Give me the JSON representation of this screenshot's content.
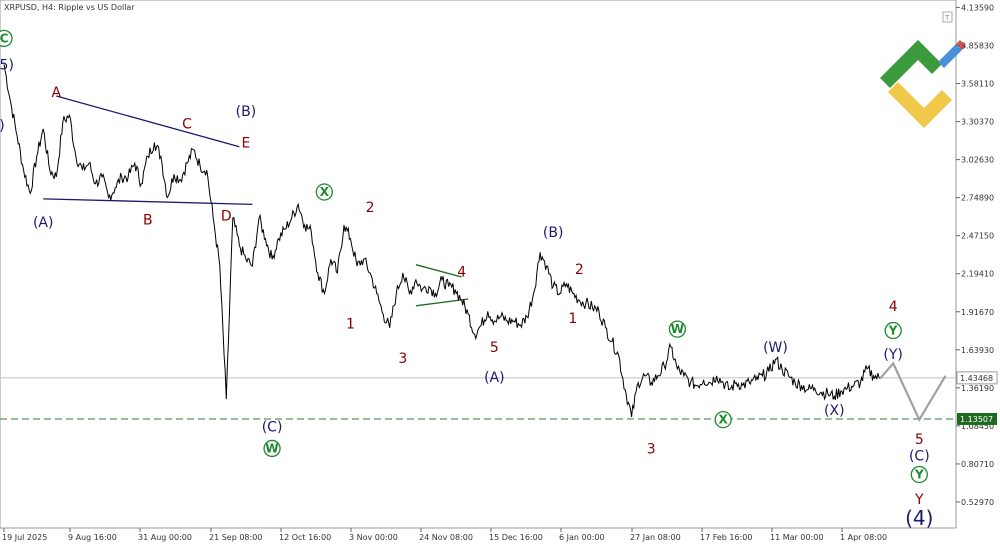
{
  "chart_data": {
    "type": "line",
    "title": "XRPUSD, H4:  Ripple vs US Dollar",
    "symbol": "XRPUSD",
    "timeframe": "H4",
    "description": "Ripple vs US Dollar",
    "x_ticks": [
      "19 Jul 2025",
      "9 Aug 16:00",
      "31 Aug 00:00",
      "21 Sep 08:00",
      "12 Oct 16:00",
      "3 Nov 00:00",
      "24 Nov 08:00",
      "15 Dec 16:00",
      "6 Jan 00:00",
      "27 Jan 08:00",
      "17 Feb 16:00",
      "11 Mar 00:00",
      "1 Apr 08:00"
    ],
    "y_ticks": [
      4.1359,
      3.8583,
      3.5811,
      3.3037,
      3.0263,
      2.7489,
      2.4715,
      2.1941,
      1.9167,
      1.6393,
      1.3619,
      1.0845,
      0.8071,
      0.5297
    ],
    "ylim": [
      0.34,
      4.19
    ],
    "current_price": 1.43468,
    "current_price_label": "1.43468",
    "support_level": 1.13507,
    "support_label": "1.13507",
    "price_path": [
      [
        0,
        3.72
      ],
      [
        1,
        3.45
      ],
      [
        2,
        3.2
      ],
      [
        3,
        2.95
      ],
      [
        4,
        2.78
      ],
      [
        5,
        3.05
      ],
      [
        6,
        3.25
      ],
      [
        7,
        2.95
      ],
      [
        8,
        2.9
      ],
      [
        9,
        3.3
      ],
      [
        10,
        3.35
      ],
      [
        11,
        3.05
      ],
      [
        12,
        2.95
      ],
      [
        13,
        3.0
      ],
      [
        14,
        2.85
      ],
      [
        15,
        2.9
      ],
      [
        16,
        2.75
      ],
      [
        17,
        2.82
      ],
      [
        18,
        2.9
      ],
      [
        19,
        2.9
      ],
      [
        20,
        3.0
      ],
      [
        21,
        2.85
      ],
      [
        22,
        3.05
      ],
      [
        23,
        3.15
      ],
      [
        24,
        3.05
      ],
      [
        25,
        2.75
      ],
      [
        26,
        2.92
      ],
      [
        27,
        2.88
      ],
      [
        28,
        3.0
      ],
      [
        29,
        3.1
      ],
      [
        30,
        2.98
      ],
      [
        31,
        2.95
      ],
      [
        32,
        2.6
      ],
      [
        33,
        2.25
      ],
      [
        34,
        1.28
      ],
      [
        35,
        2.6
      ],
      [
        36,
        2.4
      ],
      [
        37,
        2.3
      ],
      [
        38,
        2.25
      ],
      [
        39,
        2.6
      ],
      [
        40,
        2.45
      ],
      [
        41,
        2.3
      ],
      [
        42,
        2.45
      ],
      [
        43,
        2.52
      ],
      [
        44,
        2.6
      ],
      [
        45,
        2.7
      ],
      [
        46,
        2.55
      ],
      [
        47,
        2.5
      ],
      [
        48,
        2.2
      ],
      [
        49,
        2.05
      ],
      [
        50,
        2.3
      ],
      [
        51,
        2.2
      ],
      [
        52,
        2.55
      ],
      [
        53,
        2.45
      ],
      [
        54,
        2.25
      ],
      [
        55,
        2.3
      ],
      [
        56,
        2.2
      ],
      [
        57,
        2.05
      ],
      [
        58,
        1.9
      ],
      [
        59,
        1.8
      ],
      [
        60,
        2.05
      ],
      [
        61,
        2.2
      ],
      [
        62,
        2.05
      ],
      [
        63,
        2.15
      ],
      [
        64,
        2.08
      ],
      [
        65,
        2.1
      ],
      [
        66,
        2.05
      ],
      [
        67,
        2.15
      ],
      [
        68,
        2.1
      ],
      [
        69,
        2.08
      ],
      [
        70,
        2.0
      ],
      [
        71,
        1.9
      ],
      [
        72,
        1.75
      ],
      [
        73,
        1.82
      ],
      [
        74,
        1.92
      ],
      [
        75,
        1.85
      ],
      [
        76,
        1.88
      ],
      [
        77,
        1.85
      ],
      [
        78,
        1.85
      ],
      [
        79,
        1.82
      ],
      [
        80,
        1.88
      ],
      [
        81,
        2.05
      ],
      [
        82,
        2.35
      ],
      [
        83,
        2.25
      ],
      [
        84,
        2.1
      ],
      [
        85,
        2.05
      ],
      [
        86,
        2.12
      ],
      [
        87,
        2.05
      ],
      [
        88,
        2.0
      ],
      [
        89,
        1.98
      ],
      [
        90,
        1.95
      ],
      [
        91,
        1.92
      ],
      [
        92,
        1.8
      ],
      [
        93,
        1.7
      ],
      [
        94,
        1.6
      ],
      [
        95,
        1.35
      ],
      [
        96,
        1.15
      ],
      [
        97,
        1.4
      ],
      [
        98,
        1.45
      ],
      [
        99,
        1.4
      ],
      [
        100,
        1.45
      ],
      [
        101,
        1.52
      ],
      [
        102,
        1.66
      ],
      [
        103,
        1.5
      ],
      [
        104,
        1.45
      ],
      [
        105,
        1.4
      ],
      [
        106,
        1.38
      ],
      [
        107,
        1.42
      ],
      [
        108,
        1.4
      ],
      [
        109,
        1.45
      ],
      [
        110,
        1.4
      ],
      [
        111,
        1.35
      ],
      [
        112,
        1.4
      ],
      [
        113,
        1.38
      ],
      [
        114,
        1.4
      ],
      [
        115,
        1.42
      ],
      [
        116,
        1.45
      ],
      [
        117,
        1.48
      ],
      [
        118,
        1.57
      ],
      [
        119,
        1.5
      ],
      [
        120,
        1.45
      ],
      [
        121,
        1.4
      ],
      [
        122,
        1.38
      ],
      [
        123,
        1.35
      ],
      [
        124,
        1.36
      ],
      [
        125,
        1.33
      ],
      [
        126,
        1.32
      ],
      [
        127,
        1.3
      ],
      [
        128,
        1.34
      ],
      [
        129,
        1.36
      ],
      [
        130,
        1.38
      ],
      [
        131,
        1.4
      ],
      [
        132,
        1.5
      ],
      [
        133,
        1.45
      ],
      [
        134,
        1.43
      ]
    ],
    "projection_path": [
      [
        134,
        1.43
      ],
      [
        136,
        1.54
      ],
      [
        140,
        1.13
      ],
      [
        144,
        1.45
      ]
    ],
    "wave_labels": [
      {
        "text": "C",
        "circled": true,
        "color": "#1e8a2e",
        "x": 0,
        "y": 3.91
      },
      {
        "text": "(5)",
        "circled": false,
        "color": "#1a1a6e",
        "x": 0,
        "y": 3.72
      },
      {
        "text": "4)",
        "circled": false,
        "color": "#1a1a6e",
        "x": -1,
        "y": 3.28
      },
      {
        "text": "A",
        "circled": false,
        "color": "#8b0000",
        "x": 8,
        "y": 3.52
      },
      {
        "text": "(A)",
        "circled": false,
        "color": "#1a1a6e",
        "x": 6,
        "y": 2.57
      },
      {
        "text": "B",
        "circled": false,
        "color": "#8b0000",
        "x": 22,
        "y": 2.59
      },
      {
        "text": "C",
        "circled": false,
        "color": "#8b0000",
        "x": 28,
        "y": 3.29
      },
      {
        "text": "D",
        "circled": false,
        "color": "#8b0000",
        "x": 34,
        "y": 2.62
      },
      {
        "text": "(B)",
        "circled": false,
        "color": "#1a1a6e",
        "x": 37,
        "y": 3.38
      },
      {
        "text": "E",
        "circled": false,
        "color": "#8b0000",
        "x": 37,
        "y": 3.15
      },
      {
        "text": "(C)",
        "circled": false,
        "color": "#1a1a6e",
        "x": 41,
        "y": 1.08
      },
      {
        "text": "W",
        "circled": true,
        "color": "#1e8a2e",
        "x": 41,
        "y": 0.92
      },
      {
        "text": "X",
        "circled": true,
        "color": "#1e8a2e",
        "x": 49,
        "y": 2.79
      },
      {
        "text": "2",
        "circled": false,
        "color": "#8b0000",
        "x": 56,
        "y": 2.68
      },
      {
        "text": "1",
        "circled": false,
        "color": "#8b0000",
        "x": 53,
        "y": 1.83
      },
      {
        "text": "3",
        "circled": false,
        "color": "#8b0000",
        "x": 61,
        "y": 1.58
      },
      {
        "text": "4",
        "circled": false,
        "color": "#8b0000",
        "x": 70,
        "y": 2.21
      },
      {
        "text": "5",
        "circled": false,
        "color": "#8b0000",
        "x": 75,
        "y": 1.66
      },
      {
        "text": "(A)",
        "circled": false,
        "color": "#1a1a6e",
        "x": 75,
        "y": 1.44
      },
      {
        "text": "(B)",
        "circled": false,
        "color": "#1a1a6e",
        "x": 84,
        "y": 2.5
      },
      {
        "text": "2",
        "circled": false,
        "color": "#8b0000",
        "x": 88,
        "y": 2.23
      },
      {
        "text": "1",
        "circled": false,
        "color": "#8b0000",
        "x": 87,
        "y": 1.87
      },
      {
        "text": "3",
        "circled": false,
        "color": "#8b0000",
        "x": 99,
        "y": 0.92
      },
      {
        "text": "W",
        "circled": true,
        "color": "#1e8a2e",
        "x": 103,
        "y": 1.79
      },
      {
        "text": "X",
        "circled": true,
        "color": "#1e8a2e",
        "x": 110,
        "y": 1.13
      },
      {
        "text": "(W)",
        "circled": false,
        "color": "#1a1a6e",
        "x": 118,
        "y": 1.66
      },
      {
        "text": "(X)",
        "circled": false,
        "color": "#1a1a6e",
        "x": 127,
        "y": 1.2
      },
      {
        "text": "4",
        "circled": false,
        "color": "#8b0000",
        "x": 136,
        "y": 1.96
      },
      {
        "text": "Y",
        "circled": true,
        "color": "#1e8a2e",
        "x": 136,
        "y": 1.78
      },
      {
        "text": "(Y)",
        "circled": false,
        "color": "#1a1a6e",
        "x": 136,
        "y": 1.61
      },
      {
        "text": "5",
        "circled": false,
        "color": "#8b0000",
        "x": 140,
        "y": 0.99
      },
      {
        "text": "(C)",
        "circled": false,
        "color": "#1a1a6e",
        "x": 140,
        "y": 0.87
      },
      {
        "text": "Y",
        "circled": true,
        "color": "#1e8a2e",
        "x": 140,
        "y": 0.73
      },
      {
        "text": "Y",
        "circled": false,
        "color": "#8b0000",
        "x": 140,
        "y": 0.55
      },
      {
        "text": "(4)",
        "circled": false,
        "color": "#1a1a6e",
        "x": 140,
        "y": 0.4
      }
    ],
    "trendlines": [
      {
        "color": "#1a1a6e",
        "points": [
          [
            8,
            3.49
          ],
          [
            36,
            3.12
          ]
        ]
      },
      {
        "color": "#1a1a6e",
        "points": [
          [
            6,
            2.74
          ],
          [
            38,
            2.7
          ]
        ]
      },
      {
        "color": "#1e6b1e",
        "points": [
          [
            63,
            2.26
          ],
          [
            70,
            2.17
          ]
        ]
      },
      {
        "color": "#1e6b1e",
        "points": [
          [
            63,
            1.96
          ],
          [
            71,
            2.01
          ]
        ]
      }
    ],
    "colors": {
      "price_line": "#000000",
      "projection": "#a0a0a0",
      "current_price_line": "#c0c0c0",
      "support_dash": "#2e7d32",
      "support_tag_bg": "#1e6b1e",
      "current_tag_bg": "#ffffff",
      "logo_green": "#3a9a3c",
      "logo_yellow": "#f0c94a",
      "logo_blue": "#4a90d9",
      "logo_red": "#d9534f"
    }
  }
}
